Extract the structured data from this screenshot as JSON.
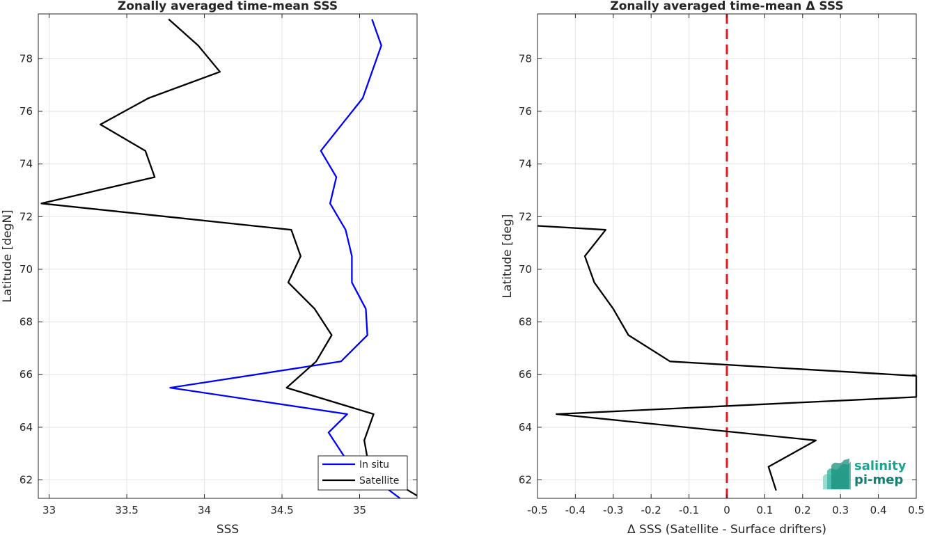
{
  "chart_data": [
    {
      "type": "line",
      "title": "Zonally averaged time-mean SSS",
      "xlabel": "SSS",
      "ylabel": "Latitude [degN]",
      "xlim": [
        32.93,
        35.37
      ],
      "ylim": [
        61.3,
        79.7
      ],
      "xticks": [
        33,
        33.5,
        34,
        34.5,
        35
      ],
      "xtick_labels": [
        "33",
        "33.5",
        "34",
        "34.5",
        "35"
      ],
      "yticks": [
        62,
        64,
        66,
        68,
        70,
        72,
        74,
        76,
        78
      ],
      "ytick_labels": [
        "62",
        "64",
        "66",
        "68",
        "70",
        "72",
        "74",
        "76",
        "78"
      ],
      "grid": true,
      "legend": "bottom-right",
      "series": [
        {
          "name": "In situ",
          "color": "#0000ff",
          "points": [
            [
              35.26,
              61.3
            ],
            [
              34.9,
              62.9
            ],
            [
              34.8,
              63.8
            ],
            [
              34.92,
              64.5
            ],
            [
              33.78,
              65.5
            ],
            [
              34.88,
              66.5
            ],
            [
              35.05,
              67.5
            ],
            [
              35.04,
              68.5
            ],
            [
              34.95,
              69.5
            ],
            [
              34.95,
              70.5
            ],
            [
              34.91,
              71.5
            ],
            [
              34.81,
              72.5
            ],
            [
              34.85,
              73.5
            ],
            [
              34.75,
              74.5
            ],
            [
              35.02,
              76.5
            ],
            [
              35.08,
              77.5
            ],
            [
              35.14,
              78.5
            ],
            [
              35.08,
              79.5
            ]
          ]
        },
        {
          "name": "Satellite",
          "color": "#000000",
          "points": [
            [
              35.37,
              61.4
            ],
            [
              35.06,
              62.5
            ],
            [
              35.03,
              63.5
            ],
            [
              35.09,
              64.5
            ],
            [
              34.53,
              65.5
            ],
            [
              34.72,
              66.5
            ],
            [
              34.82,
              67.5
            ],
            [
              34.71,
              68.5
            ],
            [
              34.54,
              69.5
            ],
            [
              34.62,
              70.5
            ],
            [
              34.56,
              71.5
            ],
            [
              32.95,
              72.5
            ],
            [
              33.68,
              73.5
            ],
            [
              33.62,
              74.5
            ],
            [
              33.33,
              75.5
            ],
            [
              33.64,
              76.5
            ],
            [
              34.1,
              77.5
            ],
            [
              33.96,
              78.5
            ],
            [
              33.77,
              79.5
            ]
          ]
        }
      ]
    },
    {
      "type": "line",
      "title": "Zonally averaged time-mean Δ SSS",
      "xlabel": "Δ SSS (Satellite - Surface drifters)",
      "ylabel": "Latitude [deg]",
      "xlim": [
        -0.5,
        0.5
      ],
      "ylim": [
        61.3,
        79.7
      ],
      "xticks": [
        -0.5,
        -0.4,
        -0.3,
        -0.2,
        -0.1,
        0,
        0.1,
        0.2,
        0.3,
        0.4,
        0.5
      ],
      "xtick_labels": [
        "-0.5",
        "-0.4",
        "-0.3",
        "-0.2",
        "-0.1",
        "0",
        "0.1",
        "0.2",
        "0.3",
        "0.4",
        "0.5"
      ],
      "yticks": [
        62,
        64,
        66,
        68,
        70,
        72,
        74,
        76,
        78
      ],
      "ytick_labels": [
        "62",
        "64",
        "66",
        "68",
        "70",
        "72",
        "74",
        "76",
        "78"
      ],
      "grid": true,
      "reference_line": {
        "x": 0,
        "color": "#e41a1c",
        "style": "dashed"
      },
      "series": [
        {
          "color": "#000000",
          "points": [
            [
              0.13,
              61.6
            ],
            [
              0.11,
              62.5
            ],
            [
              0.235,
              63.5
            ],
            [
              -0.45,
              64.5
            ],
            [
              0.5,
              65.15
            ],
            [
              0.5,
              65.95
            ],
            [
              -0.15,
              66.5
            ],
            [
              -0.26,
              67.5
            ],
            [
              -0.3,
              68.5
            ],
            [
              -0.35,
              69.5
            ],
            [
              -0.375,
              70.5
            ],
            [
              -0.32,
              71.5
            ],
            [
              -0.5,
              71.65
            ]
          ]
        }
      ]
    }
  ],
  "logo": {
    "line1": "salinity",
    "line2": "pi-mep"
  }
}
